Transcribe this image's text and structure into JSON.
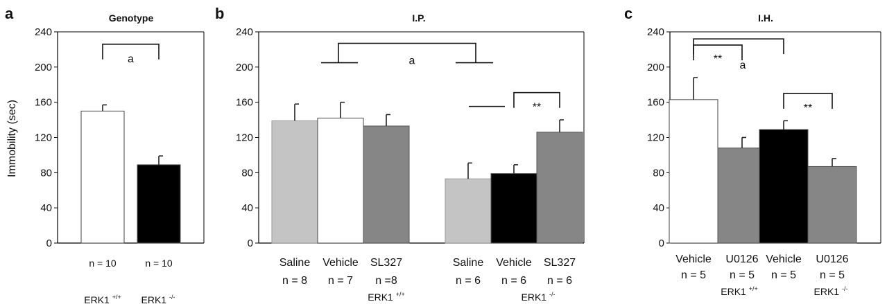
{
  "colors": {
    "white": "#ffffff",
    "light_gray": "#c4c4c4",
    "black": "#000000",
    "dark_gray": "#868686"
  },
  "y_axis_label": "Immobility (sec)",
  "chart_data": [
    {
      "panel": "a",
      "title": "Genotype",
      "type": "bar",
      "ylim": [
        0,
        240
      ],
      "yticks": [
        0,
        40,
        80,
        120,
        160,
        200,
        240
      ],
      "ylabel": "Immobility (sec)",
      "bars": [
        {
          "value": 150,
          "error": 7,
          "fill": "white",
          "n": "n = 10",
          "label": ""
        },
        {
          "value": 89,
          "error": 10,
          "fill": "black",
          "n": "n = 10",
          "label": ""
        }
      ],
      "groups": [
        {
          "name": "ERK1",
          "sup": "+/+",
          "bars": [
            0
          ]
        },
        {
          "name": "ERK1",
          "sup": "-/-",
          "bars": [
            1
          ]
        }
      ],
      "annotations": [
        {
          "text": "a",
          "type": "bracket",
          "from": 0,
          "to": 1,
          "y": 226
        }
      ]
    },
    {
      "panel": "b",
      "title": "I.P.",
      "type": "bar",
      "ylim": [
        0,
        240
      ],
      "yticks": [
        0,
        40,
        80,
        120,
        160,
        200,
        240
      ],
      "ylabel": "",
      "bars": [
        {
          "value": 139,
          "error": 19,
          "fill": "light_gray",
          "label": "Saline",
          "n": "n = 8"
        },
        {
          "value": 142,
          "error": 18,
          "fill": "white",
          "label": "Vehicle",
          "n": "n = 7"
        },
        {
          "value": 133,
          "error": 13,
          "fill": "dark_gray",
          "label": "SL327",
          "n": "n =8"
        },
        {
          "value": 73,
          "error": 18,
          "fill": "light_gray",
          "label": "Saline",
          "n": "n = 6"
        },
        {
          "value": 79,
          "error": 10,
          "fill": "black",
          "label": "Vehicle",
          "n": "n = 6"
        },
        {
          "value": 126,
          "error": 14,
          "fill": "dark_gray",
          "label": "SL327",
          "n": "n = 6"
        }
      ],
      "groups": [
        {
          "name": "ERK1",
          "sup": "+/+",
          "bars": [
            0,
            1,
            2
          ]
        },
        {
          "name": "ERK1",
          "sup": "-/-",
          "bars": [
            3,
            4,
            5
          ]
        }
      ],
      "annotations": [
        {
          "text": "a",
          "type": "group-bracket",
          "y": 227
        },
        {
          "text": "**",
          "type": "bracket",
          "from": 4,
          "to": 5,
          "y": 171
        }
      ]
    },
    {
      "panel": "c",
      "title": "I.H.",
      "type": "bar",
      "ylim": [
        0,
        240
      ],
      "yticks": [
        0,
        40,
        80,
        120,
        160,
        200,
        240
      ],
      "ylabel": "",
      "bars": [
        {
          "value": 163,
          "error": 25,
          "fill": "white",
          "label": "Vehicle",
          "n": "n = 5"
        },
        {
          "value": 108,
          "error": 12,
          "fill": "dark_gray",
          "label": "U0126",
          "n": "n = 5"
        },
        {
          "value": 129,
          "error": 10,
          "fill": "black",
          "label": "Vehicle",
          "n": "n = 5"
        },
        {
          "value": 87,
          "error": 9,
          "fill": "dark_gray",
          "label": "U0126",
          "n": "n = 5"
        }
      ],
      "groups": [
        {
          "name": "ERK1",
          "sup": "+/+",
          "bars": [
            0,
            1
          ]
        },
        {
          "name": "ERK1",
          "sup": "-/-",
          "bars": [
            2,
            3
          ]
        }
      ],
      "annotations": [
        {
          "text": "a",
          "type": "bracket",
          "from": 0,
          "to": 2,
          "y": 232
        },
        {
          "text": "**",
          "type": "bracket",
          "from": 0,
          "to": 1,
          "y": 225
        },
        {
          "text": "**",
          "type": "bracket",
          "from": 2,
          "to": 3,
          "y": 170
        }
      ]
    }
  ]
}
